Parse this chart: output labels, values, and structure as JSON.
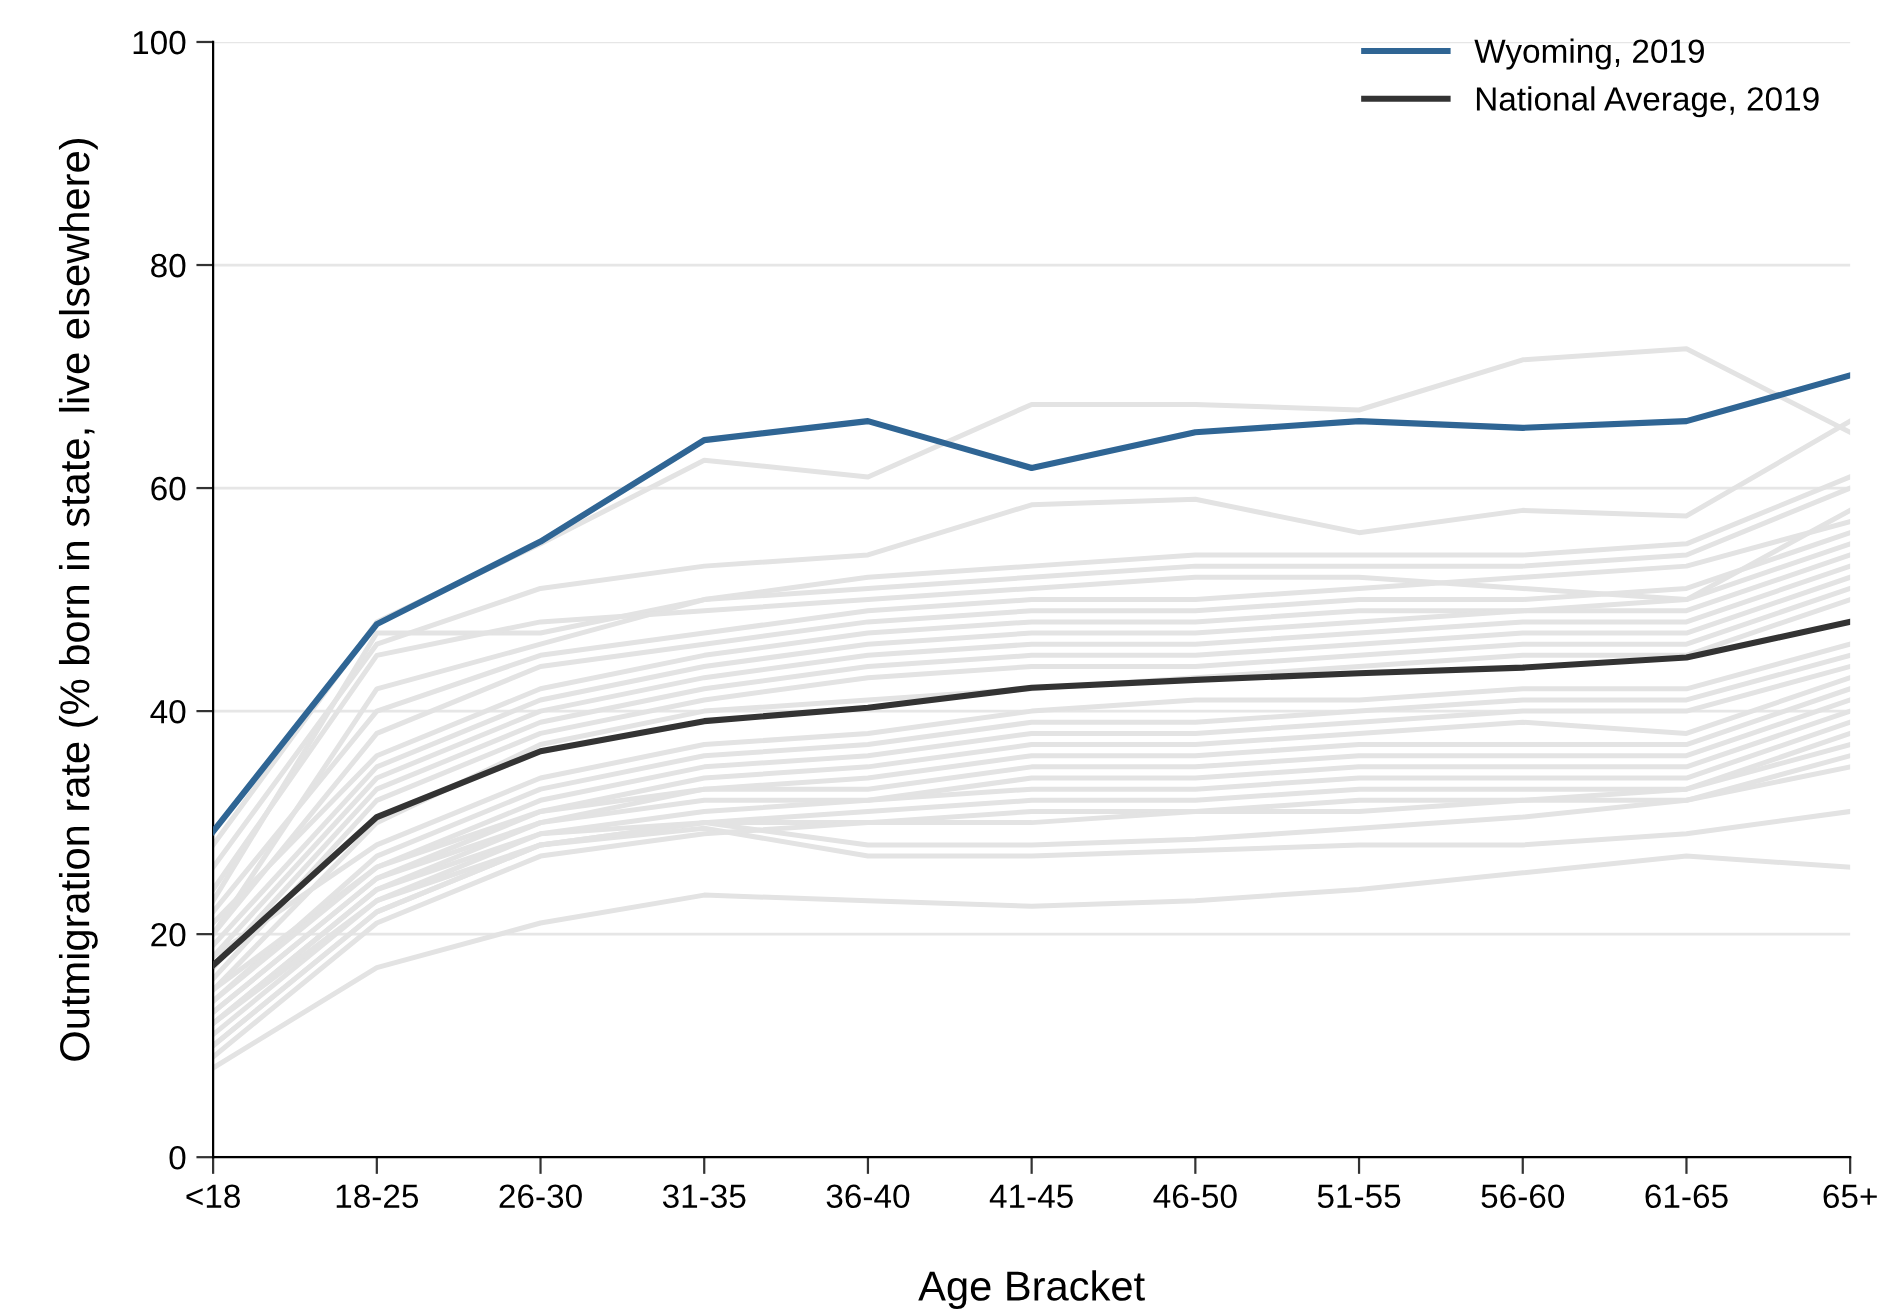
{
  "chart_data": {
    "type": "line",
    "xlabel": "Age Bracket",
    "ylabel": "Outmigration rate (% born in state, live elsewhere)",
    "categories": [
      "<18",
      "18-25",
      "26-30",
      "31-35",
      "36-40",
      "41-45",
      "46-50",
      "51-55",
      "56-60",
      "61-65",
      "65+"
    ],
    "ylim": [
      0,
      100
    ],
    "yticks": [
      0,
      20,
      40,
      60,
      80,
      100
    ],
    "grid": "y",
    "legend": "top right",
    "line_style": "solid",
    "marker": "none",
    "series": [
      {
        "color": "#e3e3e3",
        "values": [
          28,
          48,
          55,
          62.5,
          61,
          67.5,
          67.5,
          67,
          71.5,
          72.5,
          65
        ]
      },
      {
        "color": "#e3e3e3",
        "values": [
          26,
          46,
          51,
          53,
          54,
          58.5,
          59,
          56,
          58,
          57.5,
          66
        ]
      },
      {
        "color": "#e3e3e3",
        "values": [
          8,
          17,
          21,
          23.5,
          23,
          22.5,
          23,
          24,
          25.5,
          27,
          26
        ]
      },
      {
        "color": "#e3e3e3",
        "values": [
          10,
          22,
          28,
          29.5,
          27,
          27,
          27.5,
          28,
          28,
          29,
          31
        ]
      },
      {
        "color": "#e3e3e3",
        "values": [
          12,
          24,
          29,
          30,
          28,
          28,
          28.5,
          29.5,
          30.5,
          32,
          35
        ]
      },
      {
        "color": "#e3e3e3",
        "values": [
          23,
          47,
          47,
          50,
          52,
          53,
          54,
          54,
          54,
          55,
          61
        ]
      },
      {
        "color": "#e3e3e3",
        "values": [
          20,
          42,
          46,
          50,
          51,
          52,
          53,
          53,
          53,
          54,
          60
        ]
      },
      {
        "color": "#e3e3e3",
        "values": [
          24,
          45,
          48,
          49,
          50,
          51,
          52,
          52,
          51,
          50,
          58
        ]
      },
      {
        "color": "#e3e3e3",
        "values": [
          22,
          40,
          45,
          47,
          49,
          50,
          50,
          51,
          52,
          53,
          57
        ]
      },
      {
        "color": "#e3e3e3",
        "values": [
          20,
          38,
          44,
          46,
          48,
          49,
          49,
          50,
          50,
          51,
          56
        ]
      },
      {
        "color": "#e3e3e3",
        "values": [
          21,
          36,
          42,
          45,
          47,
          48,
          48,
          49,
          49,
          50,
          55
        ]
      },
      {
        "color": "#e3e3e3",
        "values": [
          19,
          35,
          41,
          44,
          46,
          47,
          47,
          48,
          49,
          49,
          54
        ]
      },
      {
        "color": "#e3e3e3",
        "values": [
          18,
          34,
          40,
          43,
          45,
          46,
          46,
          47,
          48,
          48,
          53
        ]
      },
      {
        "color": "#e3e3e3",
        "values": [
          17,
          33,
          39,
          42,
          44,
          45,
          45,
          46,
          47,
          47,
          52
        ]
      },
      {
        "color": "#e3e3e3",
        "values": [
          16,
          32,
          38,
          41,
          43,
          44,
          44,
          45,
          46,
          46,
          51
        ]
      },
      {
        "color": "#e3e3e3",
        "values": [
          15,
          30,
          37,
          40,
          41,
          42,
          43,
          44,
          45,
          45,
          50
        ]
      },
      {
        "color": "#e3e3e3",
        "values": [
          18,
          28,
          34,
          37,
          38,
          40,
          41,
          41,
          42,
          42,
          46
        ]
      },
      {
        "color": "#e3e3e3",
        "values": [
          14,
          27,
          33,
          36,
          37,
          39,
          39,
          40,
          41,
          41,
          45
        ]
      },
      {
        "color": "#e3e3e3",
        "values": [
          15,
          26,
          32,
          35,
          36,
          38,
          38,
          39,
          40,
          40,
          44
        ]
      },
      {
        "color": "#e3e3e3",
        "values": [
          13,
          25,
          31,
          34,
          35,
          37,
          37,
          38,
          39,
          38,
          43
        ]
      },
      {
        "color": "#e3e3e3",
        "values": [
          12,
          24,
          30,
          33,
          34,
          36,
          36,
          37,
          37,
          37,
          42
        ]
      },
      {
        "color": "#e3e3e3",
        "values": [
          14,
          26,
          31,
          33,
          33,
          35,
          35,
          36,
          36,
          36,
          41
        ]
      },
      {
        "color": "#e3e3e3",
        "values": [
          11,
          23,
          29,
          31,
          32,
          34,
          34,
          35,
          35,
          35,
          40
        ]
      },
      {
        "color": "#e3e3e3",
        "values": [
          13,
          25,
          30,
          32,
          32,
          33,
          33,
          34,
          34,
          34,
          39
        ]
      },
      {
        "color": "#e3e3e3",
        "values": [
          10,
          22,
          28,
          30,
          31,
          32,
          32,
          33,
          33,
          33,
          38
        ]
      },
      {
        "color": "#e3e3e3",
        "values": [
          12,
          23,
          28,
          30,
          30,
          31,
          31,
          32,
          32,
          33,
          37
        ]
      },
      {
        "color": "#e3e3e3",
        "values": [
          9,
          21,
          27,
          29,
          30,
          30,
          31,
          31,
          32,
          32,
          36
        ]
      },
      {
        "name": "National Average, 2019",
        "color": "#333333",
        "values": [
          17.2,
          30.5,
          36.4,
          39.1,
          40.3,
          42.1,
          42.8,
          43.4,
          43.9,
          44.8,
          48
        ]
      },
      {
        "name": "Wyoming, 2019",
        "color": "#2f6594",
        "values": [
          29.2,
          47.8,
          55.2,
          64.3,
          66,
          61.8,
          65,
          66,
          65.4,
          66,
          70.1
        ]
      }
    ]
  }
}
